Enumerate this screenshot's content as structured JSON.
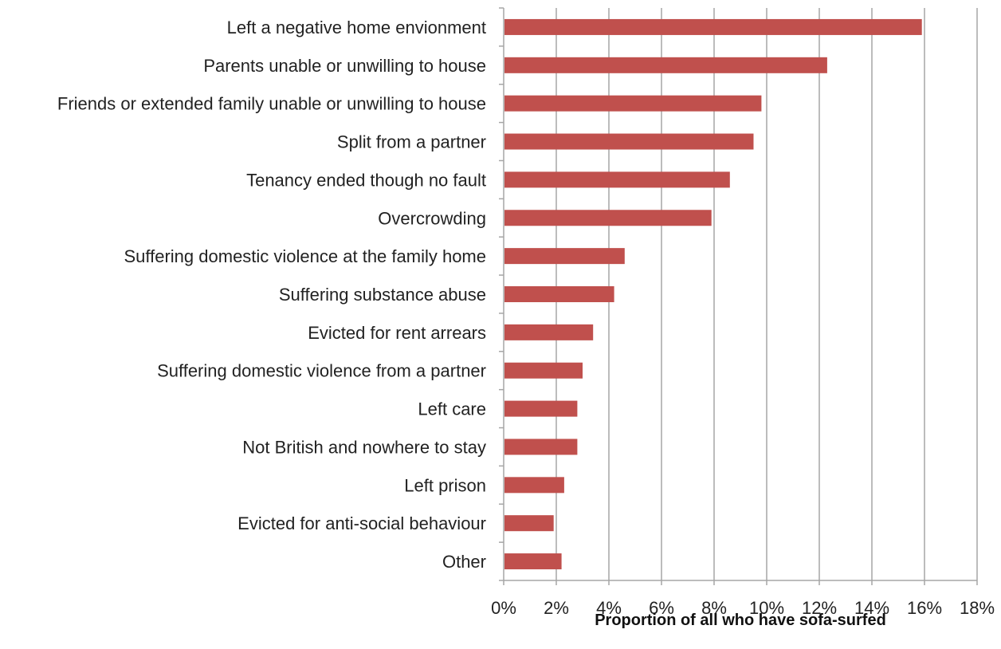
{
  "chart_data": {
    "type": "bar",
    "orientation": "horizontal",
    "categories": [
      "Left a negative home envionment",
      "Parents unable or unwilling to house",
      "Friends or extended family unable or unwilling to house",
      "Split from a partner",
      "Tenancy ended though no fault",
      "Overcrowding",
      "Suffering domestic violence at the family home",
      "Suffering substance abuse",
      "Evicted for rent arrears",
      "Suffering domestic violence from a partner",
      "Left care",
      "Not British and nowhere to stay",
      "Left prison",
      "Evicted for anti-social behaviour",
      "Other"
    ],
    "values": [
      15.9,
      12.3,
      9.8,
      9.5,
      8.6,
      7.9,
      4.6,
      4.2,
      3.4,
      3.0,
      2.8,
      2.8,
      2.3,
      1.9,
      2.2
    ],
    "xlabel": "Proportion of all who have sofa-surfed",
    "ylabel": "",
    "title": "",
    "xlim": [
      0,
      18
    ],
    "x_ticks": [
      0,
      2,
      4,
      6,
      8,
      10,
      12,
      14,
      16,
      18
    ],
    "x_tick_labels": [
      "0%",
      "2%",
      "4%",
      "6%",
      "8%",
      "10%",
      "12%",
      "14%",
      "16%",
      "18%"
    ],
    "grid": "vertical",
    "legend": "none",
    "bar_color": "#c0504d",
    "grid_color": "#a6a6a6"
  }
}
